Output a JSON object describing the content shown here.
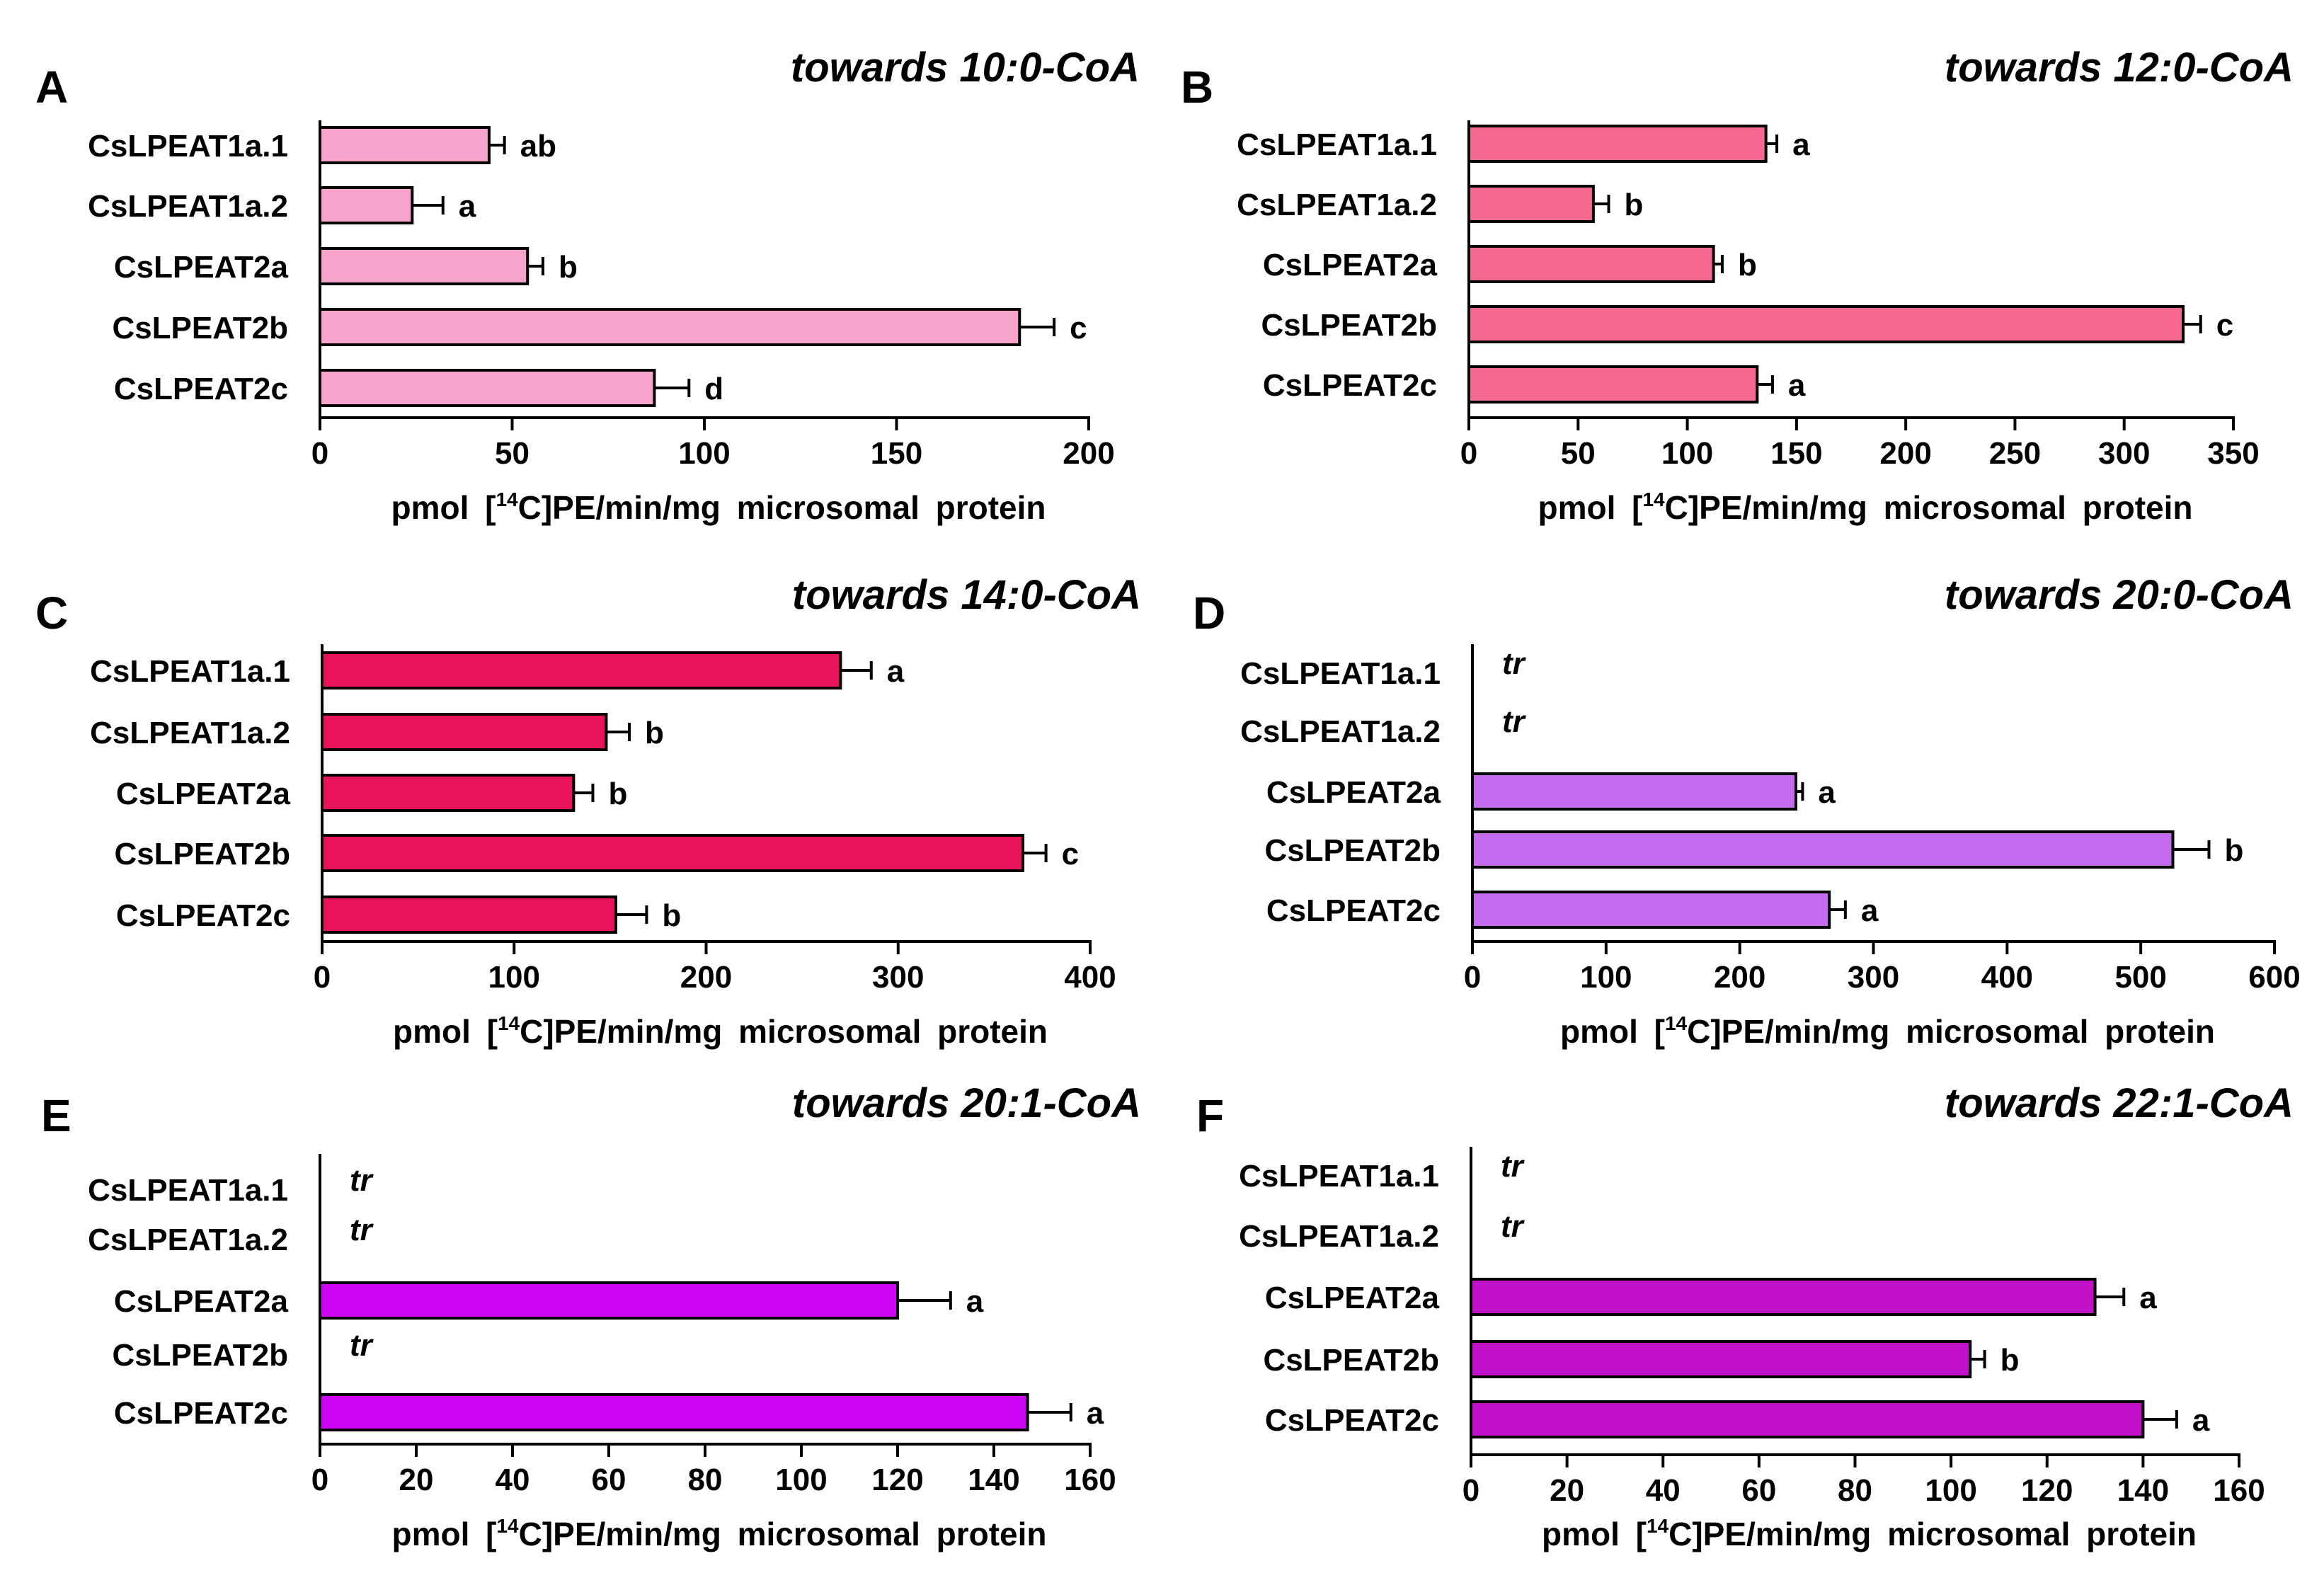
{
  "chart_data": [
    {
      "type": "bar",
      "orientation": "horizontal",
      "panel": "A",
      "title": "towards 10:0-CoA",
      "xlabel_pre": "pmol [",
      "xlabel_sup": "14",
      "xlabel_post": "C]PE/min/mg microsomal protein",
      "xlim": [
        0,
        200
      ],
      "xticks": [
        "0",
        "50",
        "100",
        "150",
        "200"
      ],
      "color": "#F7A3CC",
      "categories": [
        "CsLPEAT1a.1",
        "CsLPEAT1a.2",
        "CsLPEAT2a",
        "CsLPEAT2b",
        "CsLPEAT2c"
      ],
      "values": [
        44,
        24,
        54,
        182,
        87
      ],
      "errors": [
        4,
        8,
        4,
        9,
        9
      ],
      "labels": [
        "ab",
        "a",
        "b",
        "c",
        "d"
      ]
    },
    {
      "type": "bar",
      "orientation": "horizontal",
      "panel": "B",
      "title": "towards 12:0-CoA",
      "xlabel_pre": "pmol [",
      "xlabel_sup": "14",
      "xlabel_post": "C]PE/min/mg microsomal protein",
      "xlim": [
        0,
        350
      ],
      "xticks": [
        "0",
        "50",
        "100",
        "150",
        "200",
        "250",
        "300",
        "350"
      ],
      "color": "#F5688F",
      "categories": [
        "CsLPEAT1a.1",
        "CsLPEAT1a.2",
        "CsLPEAT2a",
        "CsLPEAT2b",
        "CsLPEAT2c"
      ],
      "values": [
        136,
        57,
        112,
        327,
        132
      ],
      "errors": [
        5,
        7,
        4,
        8,
        7
      ],
      "labels": [
        "a",
        "b",
        "b",
        "c",
        "a"
      ]
    },
    {
      "type": "bar",
      "orientation": "horizontal",
      "panel": "C",
      "title": "towards 14:0-CoA",
      "xlabel_pre": "pmol [",
      "xlabel_sup": "14",
      "xlabel_post": "C]PE/min/mg microsomal protein",
      "xlim": [
        0,
        400
      ],
      "xticks": [
        "0",
        "100",
        "200",
        "300",
        "400"
      ],
      "color": "#E8135A",
      "categories": [
        "CsLPEAT1a.1",
        "CsLPEAT1a.2",
        "CsLPEAT2a",
        "CsLPEAT2b",
        "CsLPEAT2c"
      ],
      "values": [
        270,
        148,
        131,
        365,
        153
      ],
      "errors": [
        16,
        12,
        10,
        12,
        16
      ],
      "labels": [
        "a",
        "b",
        "b",
        "c",
        "b"
      ]
    },
    {
      "type": "bar",
      "orientation": "horizontal",
      "panel": "D",
      "title": "towards 20:0-CoA",
      "xlabel_pre": "pmol [",
      "xlabel_sup": "14",
      "xlabel_post": "C]PE/min/mg microsomal protein",
      "xlim": [
        0,
        600
      ],
      "xticks": [
        "0",
        "100",
        "200",
        "300",
        "400",
        "500",
        "600"
      ],
      "color": "#C46BF0",
      "categories": [
        "CsLPEAT1a.1",
        "CsLPEAT1a.2",
        "CsLPEAT2a",
        "CsLPEAT2b",
        "CsLPEAT2c"
      ],
      "values": [
        null,
        null,
        242,
        524,
        267
      ],
      "errors": [
        null,
        null,
        5,
        27,
        12
      ],
      "labels": [
        "tr",
        "tr",
        "a",
        "b",
        "a"
      ]
    },
    {
      "type": "bar",
      "orientation": "horizontal",
      "panel": "E",
      "title": "towards 20:1-CoA",
      "xlabel_pre": "pmol [",
      "xlabel_sup": "14",
      "xlabel_post": "C]PE/min/mg microsomal protein",
      "xlim": [
        0,
        160
      ],
      "xticks": [
        "0",
        "20",
        "40",
        "60",
        "80",
        "100",
        "120",
        "140",
        "160"
      ],
      "color": "#CC05F5",
      "categories": [
        "CsLPEAT1a.1",
        "CsLPEAT1a.2",
        "CsLPEAT2a",
        "CsLPEAT2b",
        "CsLPEAT2c"
      ],
      "values": [
        null,
        null,
        120,
        null,
        147
      ],
      "errors": [
        null,
        null,
        11,
        null,
        9
      ],
      "labels": [
        "tr",
        "tr",
        "a",
        "tr",
        "a"
      ]
    },
    {
      "type": "bar",
      "orientation": "horizontal",
      "panel": "F",
      "title": "towards 22:1-CoA",
      "xlabel_pre": "pmol [",
      "xlabel_sup": "14",
      "xlabel_post": "C]PE/min/mg microsomal protein",
      "xlim": [
        0,
        160
      ],
      "xticks": [
        "0",
        "20",
        "40",
        "60",
        "80",
        "100",
        "120",
        "140",
        "160"
      ],
      "color": "#C111C8",
      "categories": [
        "CsLPEAT1a.1",
        "CsLPEAT1a.2",
        "CsLPEAT2a",
        "CsLPEAT2b",
        "CsLPEAT2c"
      ],
      "values": [
        null,
        null,
        130,
        104,
        140
      ],
      "errors": [
        null,
        null,
        6,
        3,
        7
      ],
      "labels": [
        "tr",
        "tr",
        "a",
        "b",
        "a"
      ]
    }
  ]
}
